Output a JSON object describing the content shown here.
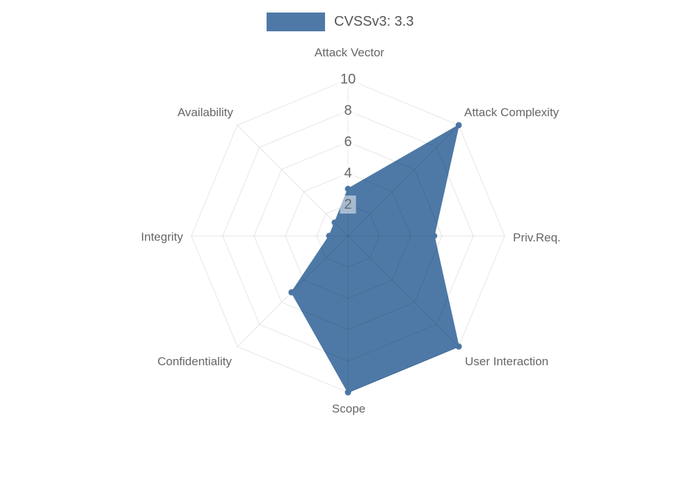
{
  "legend": {
    "label": "CVSSv3: 3.3",
    "swatch_color": "#4e79a7"
  },
  "chart_data": {
    "type": "radar",
    "title": "CVSSv3: 3.3",
    "max": 10,
    "ring_step": 2,
    "grid": "on",
    "legend_position": "top-center",
    "ticks": [
      "10",
      "8",
      "6",
      "4",
      "2"
    ],
    "axes": [
      {
        "label": "Attack Vector",
        "value": 3.0
      },
      {
        "label": "Attack Complexity",
        "value": 10
      },
      {
        "label": "Priv.Req.",
        "value": 5.5
      },
      {
        "label": "User Interaction",
        "value": 10
      },
      {
        "label": "Scope",
        "value": 10
      },
      {
        "label": "Confidentiality",
        "value": 5.1
      },
      {
        "label": "Integrity",
        "value": 1.2
      },
      {
        "label": "Availability",
        "value": 1.2
      }
    ],
    "series": [
      {
        "name": "CVSSv3: 3.3",
        "values": [
          3.0,
          10,
          5.5,
          10,
          10,
          5.1,
          1.2,
          1.2
        ]
      }
    ],
    "colors": {
      "series": "#4e79a7",
      "grid": "rgba(0,0,0,0.10)",
      "axis_label_text": "#666666",
      "tick_text": "#666666",
      "legend_text": "#555555"
    }
  }
}
